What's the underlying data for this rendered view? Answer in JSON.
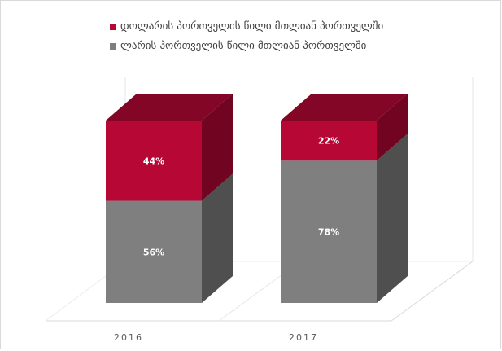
{
  "chart_data": {
    "type": "bar",
    "stacked": true,
    "percent": true,
    "three_d": true,
    "categories": [
      "2016",
      "2017"
    ],
    "series": [
      {
        "name": "ლარის პორთველის წილი მთლიან პორთველში",
        "values": [
          56,
          78
        ],
        "labels": [
          "56%",
          "78%"
        ],
        "color": "#7f7f7f"
      },
      {
        "name": "დოლარის პორთველის წილი მთლიან პორთველში",
        "values": [
          44,
          22
        ],
        "labels": [
          "44%",
          "22%"
        ],
        "color": "#b70835"
      }
    ],
    "legend_order": [
      1,
      0
    ],
    "legend_position": "top-left",
    "ylim": [
      0,
      100
    ],
    "grid": false
  }
}
